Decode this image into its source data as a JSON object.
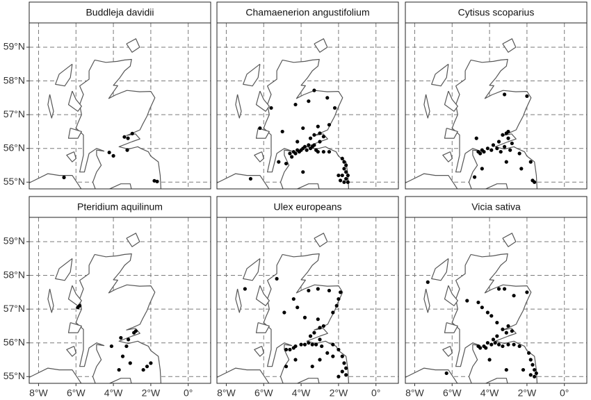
{
  "chart_data": [
    {
      "type": "scatter",
      "title": "Buddleja davidii",
      "color": "#000000",
      "x": [
        -6.64,
        -3.41,
        -2.99,
        -3.22,
        -4.22,
        -3.26,
        -4.0,
        -1.81,
        -1.66
      ],
      "y": [
        55.14,
        56.34,
        56.44,
        56.3,
        55.88,
        55.95,
        55.78,
        55.04,
        55.02
      ],
      "xlim": [
        -8.5,
        1.2
      ],
      "ylim": [
        54.8,
        59.72
      ],
      "xticks": [
        {
          "value": -8,
          "label": "8°W"
        },
        {
          "value": -6,
          "label": "6°W"
        },
        {
          "value": -4,
          "label": "4°W"
        },
        {
          "value": -2,
          "label": "2°W"
        },
        {
          "value": 0,
          "label": "0°"
        }
      ],
      "yticks": [
        {
          "value": 55,
          "label": "55°N"
        },
        {
          "value": 56,
          "label": "56°N"
        },
        {
          "value": 57,
          "label": "57°N"
        },
        {
          "value": 58,
          "label": "58°N"
        },
        {
          "value": 59,
          "label": "59°N"
        }
      ],
      "grid": true
    },
    {
      "type": "scatter",
      "title": "Chamaenerion angustifolium",
      "color": "#000000",
      "x": [
        -6.2,
        -6.7,
        -5.6,
        -5.0,
        -5.2,
        -4.5,
        -4.6,
        -4.4,
        -4.3,
        -4.2,
        -4.1,
        -4.0,
        -3.9,
        -3.8,
        -3.7,
        -3.6,
        -3.5,
        -3.4,
        -3.3,
        -3.2,
        -3.1,
        -3.0,
        -3.3,
        -3.0,
        -2.8,
        -3.5,
        -4.2,
        -3.9,
        -4.3,
        -3.6,
        -3.3,
        -2.6,
        -2.2,
        -2.5,
        -3.1,
        -2.8,
        -2.5,
        -1.8,
        -1.7,
        -1.6,
        -1.7,
        -1.6,
        -1.8,
        -1.5,
        -1.6,
        -1.7,
        -1.9,
        -1.5,
        -2.0,
        -3.9,
        -4.8
      ],
      "y": [
        56.6,
        55.1,
        57.2,
        56.5,
        55.6,
        55.75,
        55.85,
        55.9,
        55.85,
        55.95,
        55.9,
        55.95,
        56.0,
        56.05,
        55.95,
        56.1,
        56.0,
        56.05,
        56.1,
        55.95,
        55.9,
        56.2,
        56.4,
        56.45,
        56.35,
        56.3,
        56.2,
        56.6,
        57.3,
        57.4,
        57.72,
        57.5,
        57.2,
        56.7,
        56.65,
        55.9,
        55.9,
        55.7,
        55.6,
        55.5,
        55.4,
        55.3,
        55.2,
        55.2,
        55.1,
        55.0,
        55.05,
        55.0,
        55.2,
        55.3,
        55.55
      ],
      "xlim": [
        -8.5,
        1.2
      ],
      "ylim": [
        54.8,
        59.72
      ],
      "xticks": [
        {
          "value": -8,
          "label": "8°W"
        },
        {
          "value": -6,
          "label": "6°W"
        },
        {
          "value": -4,
          "label": "4°W"
        },
        {
          "value": -2,
          "label": "2°W"
        },
        {
          "value": 0,
          "label": "0°"
        }
      ],
      "yticks": [
        {
          "value": 55,
          "label": "55°N"
        },
        {
          "value": 56,
          "label": "56°N"
        },
        {
          "value": 57,
          "label": "57°N"
        },
        {
          "value": 58,
          "label": "58°N"
        },
        {
          "value": 59,
          "label": "59°N"
        }
      ],
      "grid": true
    },
    {
      "type": "scatter",
      "title": "Cytisus scoparius",
      "color": "#000000",
      "x": [
        -3.2,
        -2.0,
        -3.1,
        -3.0,
        -3.3,
        -3.5,
        -3.8,
        -4.1,
        -4.3,
        -4.5,
        -4.6,
        -4.4,
        -3.9,
        -3.6,
        -3.4,
        -3.2,
        -2.9,
        -2.4,
        -2.8,
        -4.4,
        -4.8,
        -3.1,
        -2.3,
        -1.8,
        -1.7,
        -1.6,
        -3.0,
        -4.7
      ],
      "y": [
        57.6,
        57.55,
        56.45,
        56.3,
        56.4,
        56.2,
        56.1,
        56.0,
        55.9,
        55.85,
        55.9,
        55.95,
        55.95,
        56.0,
        55.9,
        56.05,
        55.95,
        55.85,
        56.15,
        55.4,
        55.15,
        55.6,
        55.4,
        55.6,
        55.05,
        55.0,
        56.5,
        56.3
      ],
      "xlim": [
        -8.5,
        1.2
      ],
      "ylim": [
        54.8,
        59.72
      ],
      "xticks": [
        {
          "value": -8,
          "label": "8°W"
        },
        {
          "value": -6,
          "label": "6°W"
        },
        {
          "value": -4,
          "label": "4°W"
        },
        {
          "value": -2,
          "label": "2°W"
        },
        {
          "value": 0,
          "label": "0°"
        }
      ],
      "yticks": [
        {
          "value": 55,
          "label": "55°N"
        },
        {
          "value": 56,
          "label": "56°N"
        },
        {
          "value": 57,
          "label": "57°N"
        },
        {
          "value": 58,
          "label": "58°N"
        },
        {
          "value": 59,
          "label": "59°N"
        }
      ],
      "grid": true
    },
    {
      "type": "scatter",
      "title": "Pteridium aquilinum",
      "color": "#000000",
      "x": [
        -5.8,
        -5.9,
        -3.6,
        -3.2,
        -2.9,
        -2.8,
        -3.3,
        -3.7,
        -3.5,
        -2.0,
        -2.2,
        -2.4,
        -3.1,
        -4.1
      ],
      "y": [
        57.1,
        57.05,
        56.15,
        56.1,
        56.3,
        56.35,
        55.9,
        55.2,
        55.6,
        55.4,
        55.3,
        55.2,
        55.4,
        55.9
      ],
      "xlim": [
        -8.5,
        1.2
      ],
      "ylim": [
        54.8,
        59.72
      ],
      "xticks": [
        {
          "value": -8,
          "label": "8°W"
        },
        {
          "value": -6,
          "label": "6°W"
        },
        {
          "value": -4,
          "label": "4°W"
        },
        {
          "value": -2,
          "label": "2°W"
        },
        {
          "value": 0,
          "label": "0°"
        }
      ],
      "yticks": [
        {
          "value": 55,
          "label": "55°N"
        },
        {
          "value": 56,
          "label": "56°N"
        },
        {
          "value": 57,
          "label": "57°N"
        },
        {
          "value": 58,
          "label": "58°N"
        },
        {
          "value": 59,
          "label": "59°N"
        }
      ],
      "grid": true
    },
    {
      "type": "scatter",
      "title": "Ulex europeans",
      "color": "#000000",
      "x": [
        -7.0,
        -5.3,
        -4.4,
        -3.6,
        -3.1,
        -2.5,
        -1.9,
        -2.0,
        -2.1,
        -2.3,
        -3.1,
        -2.8,
        -3.0,
        -3.3,
        -3.5,
        -3.0,
        -4.4,
        -4.6,
        -4.3,
        -4.0,
        -3.8,
        -3.6,
        -3.4,
        -3.2,
        -2.9,
        -2.6,
        -2.3,
        -2.0,
        -1.8,
        -1.7,
        -1.6,
        -1.8,
        -1.6,
        -2.0,
        -3.0,
        -3.4,
        -4.3,
        -4.8,
        -4.9,
        -4.2,
        -3.8,
        -4.8,
        -2.3
      ],
      "y": [
        57.6,
        57.9,
        57.3,
        57.55,
        57.6,
        57.55,
        57.5,
        57.3,
        57.1,
        56.9,
        56.7,
        56.5,
        56.45,
        56.3,
        56.2,
        56.1,
        55.85,
        55.8,
        55.9,
        55.95,
        55.95,
        56.0,
        55.95,
        55.95,
        55.9,
        55.7,
        55.6,
        55.8,
        55.6,
        55.4,
        55.25,
        55.15,
        55.05,
        55.0,
        55.5,
        55.3,
        55.5,
        55.3,
        56.9,
        57.05,
        56.75,
        55.8,
        55.95
      ],
      "xlim": [
        -8.5,
        1.2
      ],
      "ylim": [
        54.8,
        59.72
      ],
      "xticks": [
        {
          "value": -8,
          "label": "8°W"
        },
        {
          "value": -6,
          "label": "6°W"
        },
        {
          "value": -4,
          "label": "4°W"
        },
        {
          "value": -2,
          "label": "2°W"
        },
        {
          "value": 0,
          "label": "0°"
        }
      ],
      "yticks": [
        {
          "value": 55,
          "label": "55°N"
        },
        {
          "value": 56,
          "label": "56°N"
        },
        {
          "value": 57,
          "label": "57°N"
        },
        {
          "value": 58,
          "label": "58°N"
        },
        {
          "value": 59,
          "label": "59°N"
        }
      ],
      "grid": true
    },
    {
      "type": "scatter",
      "title": "Vicia sativa",
      "color": "#000000",
      "x": [
        -7.3,
        -5.2,
        -4.4,
        -3.2,
        -2.7,
        -2.0,
        -3.5,
        -4.1,
        -3.9,
        -3.0,
        -3.3,
        -3.1,
        -2.8,
        -3.6,
        -3.8,
        -4.1,
        -4.3,
        -4.5,
        -4.6,
        -4.2,
        -3.9,
        -3.7,
        -3.5,
        -3.3,
        -3.0,
        -2.7,
        -2.4,
        -1.9,
        -1.8,
        -1.7,
        -1.6,
        -1.5,
        -1.6,
        -1.8,
        -2.2,
        -3.1,
        -4.0,
        -6.3,
        -4.6,
        -3.6
      ],
      "y": [
        57.8,
        57.25,
        57.05,
        57.6,
        57.4,
        57.5,
        57.6,
        56.9,
        56.8,
        56.5,
        56.4,
        56.3,
        56.35,
        56.2,
        56.1,
        56.0,
        55.9,
        55.85,
        55.9,
        55.85,
        55.95,
        56.0,
        55.95,
        55.9,
        55.95,
        55.95,
        55.9,
        55.7,
        55.5,
        55.35,
        55.2,
        55.1,
        55.0,
        55.05,
        55.2,
        55.2,
        55.5,
        55.1,
        57.2,
        56.6
      ],
      "xlim": [
        -8.5,
        1.2
      ],
      "ylim": [
        54.8,
        59.72
      ],
      "xticks": [
        {
          "value": -8,
          "label": "8°W"
        },
        {
          "value": -6,
          "label": "6°W"
        },
        {
          "value": -4,
          "label": "4°W"
        },
        {
          "value": -2,
          "label": "2°W"
        },
        {
          "value": 0,
          "label": "0°"
        }
      ],
      "yticks": [
        {
          "value": 55,
          "label": "55°N"
        },
        {
          "value": 56,
          "label": "56°N"
        },
        {
          "value": 57,
          "label": "57°N"
        },
        {
          "value": 58,
          "label": "58°N"
        },
        {
          "value": 59,
          "label": "59°N"
        }
      ],
      "grid": true
    }
  ]
}
